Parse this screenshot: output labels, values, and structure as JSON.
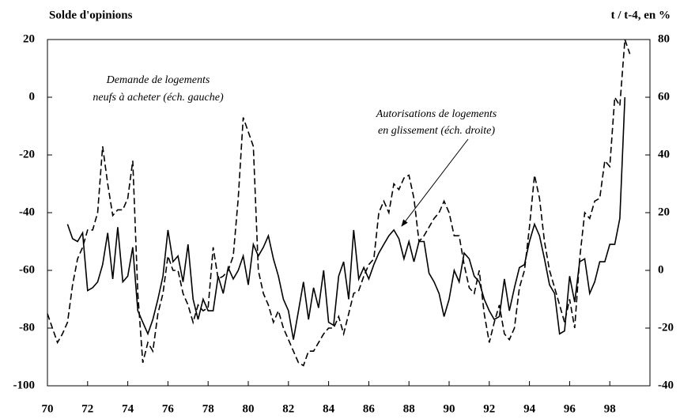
{
  "chart_data": {
    "type": "line",
    "ylabel": "Solde d'opinions",
    "y2label": "t / t-4, en %",
    "annotations": [
      "Demande de logements",
      "neufs à acheter (éch. gauche)",
      "Autorisations de logements",
      "en glissement (éch. droite)"
    ],
    "xlim": [
      70,
      100
    ],
    "xticks": [
      70,
      72,
      74,
      76,
      78,
      80,
      82,
      84,
      86,
      88,
      90,
      92,
      94,
      96,
      98
    ],
    "ylim": [
      -100,
      20
    ],
    "yticks": [
      20,
      0,
      -20,
      -40,
      -60,
      -80,
      -100
    ],
    "y2lim": [
      -40,
      80
    ],
    "y2ticks": [
      80,
      60,
      40,
      20,
      0,
      -20,
      -40
    ],
    "series": [
      {
        "color": "#000000",
        "dashed": true,
        "x": [
          70,
          70.25,
          70.5,
          70.75,
          71,
          71.25,
          71.5,
          71.75,
          72,
          72.25,
          72.5,
          72.75,
          73,
          73.25,
          73.5,
          73.75,
          74,
          74.25,
          74.5,
          74.75,
          75,
          75.25,
          75.5,
          75.75,
          76,
          76.25,
          76.5,
          76.75,
          77,
          77.25,
          77.5,
          77.75,
          78,
          78.25,
          78.5,
          78.75,
          79,
          79.25,
          79.5,
          79.75,
          80,
          80.25,
          80.5,
          80.75,
          81,
          81.25,
          81.5,
          81.75,
          82,
          82.25,
          82.5,
          82.75,
          83,
          83.25,
          83.5,
          83.75,
          84,
          84.25,
          84.5,
          84.75,
          85,
          85.25,
          85.5,
          85.75,
          86,
          86.25,
          86.5,
          86.75,
          87,
          87.25,
          87.5,
          87.75,
          88,
          88.25,
          88.5,
          88.75,
          89,
          89.25,
          89.5,
          89.75,
          90,
          90.25,
          90.5,
          90.75,
          91,
          91.25,
          91.5,
          91.75,
          92,
          92.25,
          92.5,
          92.75,
          93,
          93.25,
          93.5,
          93.75,
          94,
          94.25,
          94.5,
          94.75,
          95,
          95.25,
          95.5,
          95.75,
          96,
          96.25,
          96.5,
          96.75,
          97,
          97.25,
          97.5,
          97.75,
          98,
          98.25,
          98.5,
          98.75,
          99
        ],
        "values": [
          -75,
          -80,
          -85,
          -82,
          -78,
          -65,
          -56,
          -52,
          -46,
          -46,
          -40,
          -17,
          -30,
          -41,
          -39,
          -39,
          -35,
          -22,
          -68,
          -92,
          -85,
          -88,
          -75,
          -68,
          -55,
          -60,
          -60,
          -68,
          -72,
          -78,
          -72,
          -74,
          -73,
          -52,
          -63,
          -62,
          -60,
          -55,
          -35,
          -7,
          -12,
          -17,
          -60,
          -68,
          -72,
          -78,
          -74,
          -80,
          -84,
          -88,
          -92,
          -93,
          -88,
          -88,
          -85,
          -82,
          -80,
          -80,
          -76,
          -82,
          -75,
          -68,
          -67,
          -62,
          -58,
          -56,
          -40,
          -36,
          -40,
          -30,
          -32,
          -28,
          -27,
          -35,
          -50,
          -48,
          -45,
          -42,
          -40,
          -36,
          -40,
          -48,
          -48,
          -58,
          -66,
          -68,
          -60,
          -75,
          -85,
          -78,
          -72,
          -82,
          -84,
          -80,
          -66,
          -60,
          -45,
          -27,
          -35,
          -50,
          -60,
          -66,
          -72,
          -78,
          -70,
          -80,
          -56,
          -40,
          -42,
          -36,
          -35,
          -22,
          -24,
          0,
          -3,
          20,
          15
        ]
      },
      {
        "color": "#000000",
        "dashed": false,
        "axis": "y2",
        "x": [
          71,
          71.25,
          71.5,
          71.75,
          72,
          72.25,
          72.5,
          72.75,
          73,
          73.25,
          73.5,
          73.75,
          74,
          74.25,
          74.5,
          74.75,
          75,
          75.25,
          75.5,
          75.75,
          76,
          76.25,
          76.5,
          76.75,
          77,
          77.25,
          77.5,
          77.75,
          78,
          78.25,
          78.5,
          78.75,
          79,
          79.25,
          79.5,
          79.75,
          80,
          80.25,
          80.5,
          80.75,
          81,
          81.25,
          81.5,
          81.75,
          82,
          82.25,
          82.5,
          82.75,
          83,
          83.25,
          83.5,
          83.75,
          84,
          84.25,
          84.5,
          84.75,
          85,
          85.25,
          85.5,
          85.75,
          86,
          86.25,
          86.5,
          86.75,
          87,
          87.25,
          87.5,
          87.75,
          88,
          88.25,
          88.5,
          88.75,
          89,
          89.25,
          89.5,
          89.75,
          90,
          90.25,
          90.5,
          90.75,
          91,
          91.25,
          91.5,
          91.75,
          92,
          92.25,
          92.5,
          92.75,
          93,
          93.25,
          93.5,
          93.75,
          94,
          94.25,
          94.5,
          94.75,
          95,
          95.25,
          95.5,
          95.75,
          96,
          96.25,
          96.5,
          96.75,
          97,
          97.25,
          97.5,
          97.75,
          98,
          98.25,
          98.5,
          98.75
        ],
        "values": [
          16,
          11,
          10,
          13,
          -7,
          -6,
          -4,
          2,
          13,
          -3,
          15,
          -4,
          -2,
          8,
          -14,
          -18,
          -22,
          -17,
          -10,
          -2,
          14,
          3,
          5,
          -4,
          9,
          -10,
          -17,
          -10,
          -14,
          -14,
          -2,
          -8,
          1,
          -3,
          0,
          5,
          -5,
          9,
          5,
          8,
          12,
          4,
          -2,
          -10,
          -14,
          -24,
          -14,
          -4,
          -17,
          -6,
          -13,
          0,
          -18,
          -19,
          -2,
          3,
          -10,
          14,
          -3,
          1,
          -3,
          2,
          6,
          9,
          12,
          14,
          11,
          4,
          10,
          3,
          10,
          10,
          -1,
          -4,
          -8,
          -16,
          -10,
          0,
          -4,
          6,
          4,
          -2,
          -4,
          -10,
          -14,
          -17,
          -16,
          -3,
          -14,
          -6,
          1,
          2,
          10,
          16,
          12,
          4,
          -5,
          -8,
          -22,
          -21,
          -2,
          -11,
          3,
          4,
          -8,
          -4,
          3,
          3,
          9,
          9,
          18,
          60
        ]
      }
    ]
  }
}
